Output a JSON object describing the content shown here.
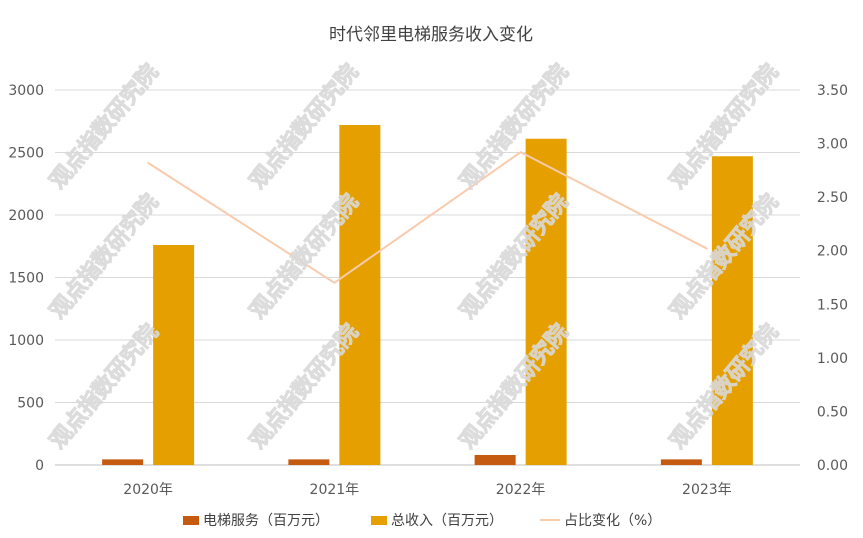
{
  "chart_data": {
    "type": "bar",
    "title": "时代邻里电梯服务收入变化",
    "categories": [
      "2020年",
      "2021年",
      "2022年",
      "2023年"
    ],
    "series": [
      {
        "name": "电梯服务（百万元）",
        "type": "bar",
        "axis": "left",
        "color": "#C55A11",
        "values": [
          45,
          45,
          80,
          45
        ]
      },
      {
        "name": "总收入（百万元）",
        "type": "bar",
        "axis": "left",
        "color": "#E5A000",
        "values": [
          1760,
          2720,
          2610,
          2470
        ]
      },
      {
        "name": "占比变化（%）",
        "type": "line",
        "axis": "right",
        "color": "#F8CBAD",
        "values": [
          2.82,
          1.7,
          2.92,
          2.02
        ]
      }
    ],
    "left_axis": {
      "min": 0,
      "max": 3000,
      "ticks": [
        "0",
        "500",
        "1000",
        "1500",
        "2000",
        "2500",
        "3000"
      ]
    },
    "right_axis": {
      "min": 0,
      "max": 3.5,
      "ticks": [
        "0.00",
        "0.50",
        "1.00",
        "1.50",
        "2.00",
        "2.50",
        "3.00",
        "3.50"
      ]
    },
    "grid": true,
    "legend_position": "bottom",
    "watermark": "观点指数研究院"
  }
}
